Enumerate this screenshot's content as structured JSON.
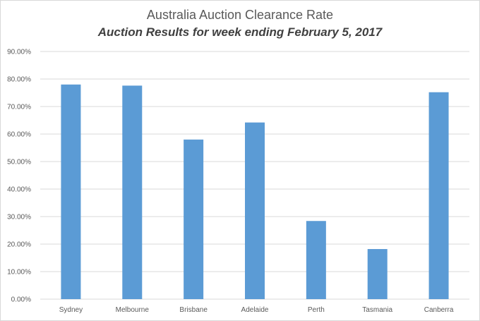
{
  "chart_data": {
    "type": "bar",
    "title": "Australia Auction Clearance Rate",
    "subtitle": "Auction Results for week ending February 5, 2017",
    "categories": [
      "Sydney",
      "Melbourne",
      "Brisbane",
      "Adelaide",
      "Perth",
      "Tasmania",
      "Canberra"
    ],
    "values": [
      0.78,
      0.776,
      0.58,
      0.642,
      0.284,
      0.182,
      0.752
    ],
    "ylim": [
      0,
      0.9
    ],
    "yticks": [
      "0.00%",
      "10.00%",
      "20.00%",
      "30.00%",
      "40.00%",
      "50.00%",
      "60.00%",
      "70.00%",
      "80.00%",
      "90.00%"
    ],
    "xlabel": "",
    "ylabel": "",
    "grid": true,
    "legend": "none",
    "bar_color": "#5b9bd5",
    "grid_color": "#d9d9d9"
  }
}
